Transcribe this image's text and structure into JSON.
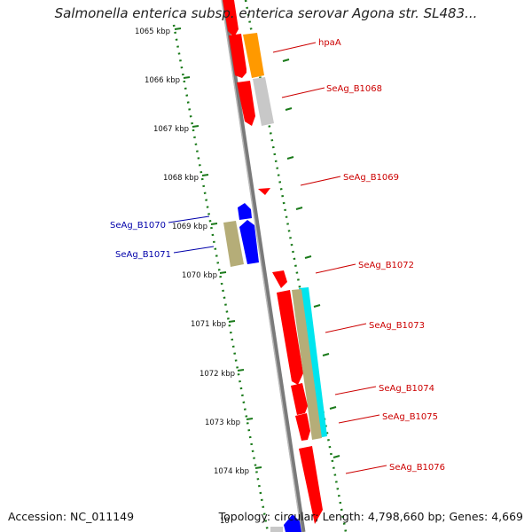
{
  "title": "Salmonella enterica subsp. enterica serovar Agona str. SL483...",
  "footer": {
    "accession": "Accession: NC_011149",
    "stats": "Topology: circular; Length: 4,798,660 bp; Genes: 4,669"
  },
  "colors": {
    "forward_label": "#cc0000",
    "reverse_label": "#0000aa",
    "backbone": "#808080",
    "dots": "#1a7a1a",
    "red_gene": "#ff0000",
    "blue_gene": "#0000ff",
    "orange_gene": "#ff9900",
    "grey_gene": "#c0c0c0",
    "khaki_gene": "#b5ad78",
    "cyan_gene": "#00e5ee"
  },
  "kbp_labels": [
    "1065 kbp",
    "1066 kbp",
    "1067 kbp",
    "1068 kbp",
    "1069 kbp",
    "1070 kbp",
    "1071 kbp",
    "1072 kbp",
    "1073 kbp",
    "1074 kbp",
    "10"
  ],
  "gene_labels": [
    {
      "text": "hpaA",
      "strand": "forward"
    },
    {
      "text": "SeAg_B1068",
      "strand": "forward"
    },
    {
      "text": "SeAg_B1069",
      "strand": "forward"
    },
    {
      "text": "SeAg_B1070",
      "strand": "reverse"
    },
    {
      "text": "SeAg_B1071",
      "strand": "reverse"
    },
    {
      "text": "SeAg_B1072",
      "strand": "forward"
    },
    {
      "text": "SeAg_B1073",
      "strand": "forward"
    },
    {
      "text": "SeAg_B1074",
      "strand": "forward"
    },
    {
      "text": "SeAg_B1075",
      "strand": "forward"
    },
    {
      "text": "SeAg_B1076",
      "strand": "forward"
    }
  ]
}
